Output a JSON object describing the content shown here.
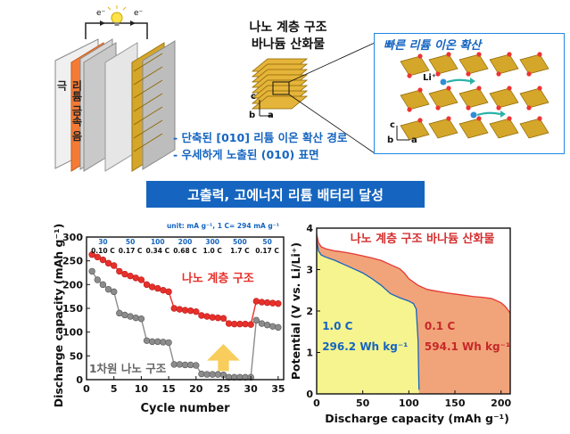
{
  "battery": {
    "electron_left": "e⁻",
    "electron_right": "e⁻",
    "electrode_label": "리튬 금속 음극"
  },
  "structure": {
    "title_line1": "나노 계층 구조",
    "title_line2": "바나듐 산화물",
    "axis_c": "c",
    "axis_b": "b",
    "axis_a": "a"
  },
  "inset": {
    "title": "빠른 리튬 이온 확산",
    "ion_label": "Li⁺",
    "axis_c": "c",
    "axis_b": "b",
    "axis_a": "a"
  },
  "features": [
    "- 단축된 [010] 리튬 이온 확산 경로",
    "- 우세하게 노출된 (010) 표면"
  ],
  "banner": "고출력, 고에너지 리튬 배터리 달성",
  "colors": {
    "accent": "#1565c0",
    "red_series": "#e8302a",
    "gray_series": "#8c8c8c",
    "crystal": "#d4a62a",
    "fill_orange": "#f1a47a",
    "fill_yellow": "#f6f48e"
  },
  "chart_data": [
    {
      "type": "scatter",
      "title": "",
      "unit_note": "unit: mA g⁻¹, 1 C= 294 mA g⁻¹",
      "xlabel": "Cycle number",
      "ylabel": "Discharge capacity (mAh g⁻¹)",
      "xlim": [
        0,
        36
      ],
      "ylim": [
        0,
        300
      ],
      "xticks": [
        0,
        5,
        10,
        15,
        20,
        25,
        30,
        35
      ],
      "yticks": [
        0,
        50,
        100,
        150,
        200,
        250,
        300
      ],
      "rate_labels_current": [
        "30",
        "50",
        "100",
        "200",
        "300",
        "500",
        "50"
      ],
      "rate_labels_c": [
        "0.10 C",
        "0.17 C",
        "0.34 C",
        "0.68 C",
        "1.0 C",
        "1.7 C",
        "0.17 C"
      ],
      "annotations": [
        "나노 계층 구조",
        "1차원 나노 구조"
      ],
      "series": [
        {
          "name": "나노 계층 구조",
          "x": [
            1,
            2,
            3,
            4,
            5,
            6,
            7,
            8,
            9,
            10,
            11,
            12,
            13,
            14,
            15,
            16,
            17,
            18,
            19,
            20,
            21,
            22,
            23,
            24,
            25,
            26,
            27,
            28,
            29,
            30,
            31,
            32,
            33,
            34,
            35
          ],
          "values": [
            263,
            258,
            252,
            245,
            240,
            228,
            222,
            218,
            214,
            210,
            200,
            195,
            192,
            188,
            185,
            150,
            148,
            146,
            145,
            143,
            135,
            133,
            131,
            130,
            129,
            118,
            117,
            117,
            117,
            116,
            165,
            163,
            162,
            161,
            160
          ]
        },
        {
          "name": "1차원 나노 구조",
          "x": [
            1,
            2,
            3,
            4,
            5,
            6,
            7,
            8,
            9,
            10,
            11,
            12,
            13,
            14,
            15,
            16,
            17,
            18,
            19,
            20,
            21,
            22,
            23,
            24,
            25,
            26,
            27,
            28,
            29,
            30,
            31,
            32,
            33,
            34,
            35
          ],
          "values": [
            228,
            210,
            200,
            190,
            185,
            140,
            136,
            133,
            130,
            128,
            82,
            80,
            80,
            79,
            78,
            32,
            32,
            31,
            31,
            30,
            12,
            11,
            11,
            11,
            10,
            5,
            5,
            5,
            5,
            5,
            125,
            118,
            115,
            112,
            110
          ]
        }
      ]
    },
    {
      "type": "area",
      "title": "나노 계층 구조 바나듐 산화물",
      "xlabel": "Discharge capacity (mAh g⁻¹)",
      "ylabel": "Potential (V vs. Li/Li⁺)",
      "xlim": [
        0,
        210
      ],
      "ylim": [
        0,
        4
      ],
      "xticks": [
        0,
        50,
        100,
        150,
        200
      ],
      "yticks": [
        0,
        1,
        2,
        3,
        4
      ],
      "annotations": [
        {
          "rate": "1.0 C",
          "energy": "296.2 Wh kg⁻¹"
        },
        {
          "rate": "0.1 C",
          "energy": "594.1 Wh kg⁻¹"
        }
      ],
      "series": [
        {
          "name": "0.1 C",
          "x": [
            0,
            2,
            5,
            10,
            20,
            30,
            40,
            50,
            60,
            70,
            80,
            90,
            95,
            100,
            110,
            120,
            130,
            140,
            150,
            160,
            170,
            180,
            190,
            200,
            205,
            210
          ],
          "values": [
            3.85,
            3.65,
            3.55,
            3.5,
            3.45,
            3.42,
            3.38,
            3.33,
            3.28,
            3.22,
            3.12,
            3.02,
            2.92,
            2.78,
            2.62,
            2.52,
            2.48,
            2.44,
            2.41,
            2.38,
            2.35,
            2.33,
            2.3,
            2.2,
            2.1,
            1.95
          ]
        },
        {
          "name": "1.0 C",
          "x": [
            0,
            2,
            5,
            10,
            20,
            30,
            40,
            50,
            60,
            70,
            80,
            90,
            100,
            105,
            108,
            110,
            111
          ],
          "values": [
            3.7,
            3.45,
            3.35,
            3.3,
            3.22,
            3.12,
            3.02,
            2.92,
            2.78,
            2.62,
            2.42,
            2.32,
            2.24,
            2.18,
            2.05,
            1.3,
            0.1
          ]
        }
      ]
    }
  ]
}
